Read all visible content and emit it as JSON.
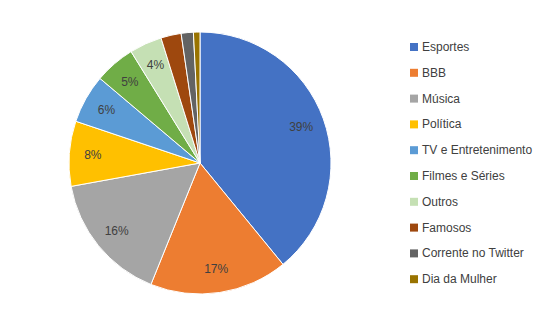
{
  "chart_data": {
    "type": "pie",
    "categories": [
      "Esportes",
      "BBB",
      "Música",
      "Política",
      "TV e Entretenimento",
      "Filmes e Séries",
      "Outros",
      "Famosos",
      "Corrente no Twitter",
      "Dia da Mulher"
    ],
    "values": [
      39,
      17,
      16,
      8,
      6,
      5,
      4,
      2.5,
      1.5,
      0.8
    ],
    "value_labels": [
      "39%",
      "17%",
      "16%",
      "8%",
      "6%",
      "5%",
      "4%",
      null,
      null,
      null
    ],
    "colors": [
      "#4472c4",
      "#ed7d31",
      "#a5a5a5",
      "#ffc000",
      "#5b9bd5",
      "#70ad47",
      "#c5e0b4",
      "#9e480e",
      "#636363",
      "#997300"
    ],
    "data_labels": true,
    "legend": "right"
  }
}
